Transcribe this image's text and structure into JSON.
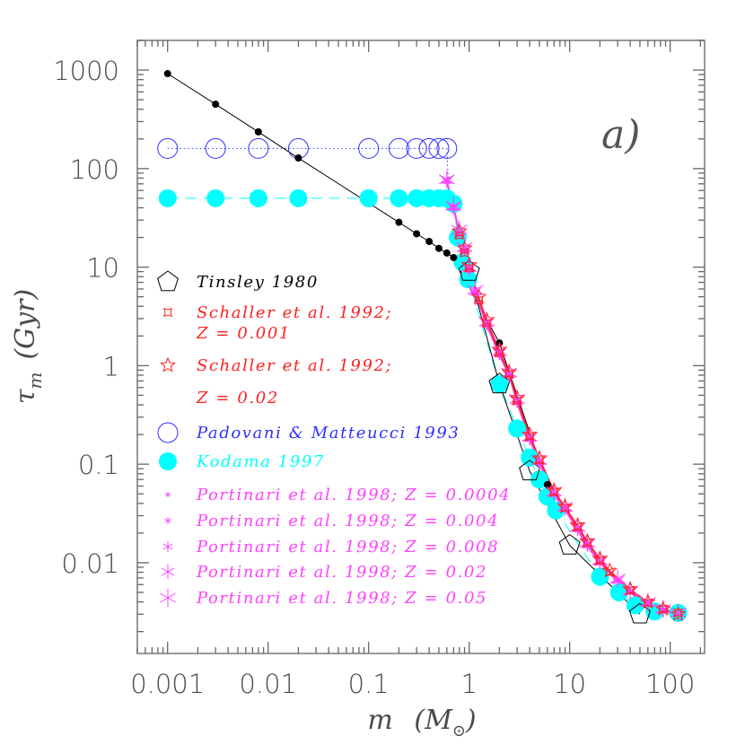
{
  "chart_data": {
    "type": "scatter",
    "panel_label": "a)",
    "xlabel": {
      "symbol": "m",
      "unit_open": "(",
      "unit": "M",
      "unit_sub": "⊙",
      "unit_close": ")"
    },
    "ylabel": {
      "symbol": "τ",
      "sub": "m",
      "unit": "(Gyr)"
    },
    "xscale": "log",
    "yscale": "log",
    "xlim": [
      0.0005,
      220
    ],
    "ylim": [
      0.0012,
      2000
    ],
    "xticks": [
      "0.001",
      "0.01",
      "0.1",
      "1",
      "10",
      "100"
    ],
    "yticks": [
      "0.01",
      "0.1",
      "1",
      "10",
      "100",
      "1000"
    ],
    "grid": false,
    "legend_position": "center-left",
    "series": [
      {
        "marker": "dot",
        "color": "#000000",
        "line": "solid",
        "in_legend": false,
        "points": [
          [
            0.001,
            920
          ],
          [
            0.003,
            450
          ],
          [
            0.008,
            236
          ],
          [
            0.02,
            128
          ],
          [
            0.2,
            28.5
          ],
          [
            0.3,
            21.8
          ],
          [
            0.4,
            18.2
          ],
          [
            0.5,
            15.5
          ],
          [
            0.6,
            13.9
          ],
          [
            0.7,
            12.5
          ],
          [
            2,
            1.7
          ],
          [
            6,
            0.062
          ]
        ]
      },
      {
        "name": "Tinsley 1980",
        "marker": "pentagon",
        "color": "#000000",
        "line": "solid",
        "points": [
          [
            1,
            9
          ],
          [
            2,
            0.65
          ],
          [
            4,
            0.085
          ],
          [
            10,
            0.015
          ],
          [
            50,
            0.003
          ]
        ]
      },
      {
        "name": "Schaller et al. 1992; Z = 0.001",
        "label_lines": [
          "Schaller et al. 1992;",
          "Z = 0.001"
        ],
        "marker": "star4",
        "color": "#ff2020",
        "line": "solid",
        "points": [
          [
            0.8,
            21
          ],
          [
            0.9,
            14
          ],
          [
            1,
            9.8
          ],
          [
            1.25,
            4.6
          ],
          [
            1.5,
            2.7
          ],
          [
            2,
            1.35
          ],
          [
            2.5,
            0.82
          ],
          [
            3,
            0.44
          ],
          [
            4,
            0.19
          ],
          [
            5,
            0.11
          ],
          [
            7,
            0.052
          ],
          [
            9,
            0.036
          ],
          [
            12,
            0.023
          ],
          [
            15,
            0.016
          ],
          [
            20,
            0.0105
          ],
          [
            25,
            0.008
          ],
          [
            40,
            0.0052
          ],
          [
            60,
            0.0039
          ],
          [
            85,
            0.0034
          ],
          [
            120,
            0.0031
          ]
        ]
      },
      {
        "name": "Schaller et al. 1992; Z = 0.02",
        "label_lines": [
          "Schaller et al. 1992;",
          "Z = 0.02"
        ],
        "marker": "star5",
        "color": "#ff2020",
        "line": "solid",
        "points": [
          [
            0.8,
            23
          ],
          [
            0.9,
            15.5
          ],
          [
            1,
            10.5
          ],
          [
            1.25,
            5
          ],
          [
            1.5,
            2.9
          ],
          [
            2,
            1.45
          ],
          [
            2.5,
            0.86
          ],
          [
            3,
            0.47
          ],
          [
            4,
            0.2
          ],
          [
            5,
            0.115
          ],
          [
            7,
            0.054
          ],
          [
            9,
            0.037
          ],
          [
            12,
            0.024
          ],
          [
            15,
            0.0165
          ],
          [
            20,
            0.011
          ],
          [
            25,
            0.0083
          ],
          [
            40,
            0.0054
          ],
          [
            60,
            0.004
          ],
          [
            85,
            0.0034
          ],
          [
            120,
            0.003
          ]
        ]
      },
      {
        "name": "Padovani & Matteucci 1993",
        "marker": "circle-open",
        "color": "#3030ff",
        "line": "dotted",
        "points": [
          [
            0.001,
            160
          ],
          [
            0.003,
            160
          ],
          [
            0.008,
            160
          ],
          [
            0.02,
            160
          ],
          [
            0.1,
            160
          ],
          [
            0.2,
            160
          ],
          [
            0.3,
            160
          ],
          [
            0.4,
            160
          ],
          [
            0.5,
            160
          ],
          [
            0.6,
            160
          ]
        ]
      },
      {
        "name": "Kodama 1997",
        "marker": "circle-filled",
        "color": "#00ffff",
        "line": "dashed",
        "points": [
          [
            0.001,
            50
          ],
          [
            0.003,
            50
          ],
          [
            0.008,
            50
          ],
          [
            0.02,
            50
          ],
          [
            0.1,
            50
          ],
          [
            0.2,
            50
          ],
          [
            0.3,
            50
          ],
          [
            0.4,
            50
          ],
          [
            0.5,
            50
          ],
          [
            0.6,
            50
          ],
          [
            0.7,
            44
          ],
          [
            0.77,
            20
          ],
          [
            0.86,
            11.2
          ],
          [
            0.98,
            7.5
          ],
          [
            2,
            0.65
          ],
          [
            3,
            0.23
          ],
          [
            4,
            0.117
          ],
          [
            5,
            0.07
          ],
          [
            6,
            0.047
          ],
          [
            7.3,
            0.034
          ],
          [
            20,
            0.0072
          ],
          [
            31,
            0.005
          ],
          [
            45,
            0.0037
          ],
          [
            70,
            0.0032
          ],
          [
            120,
            0.0031
          ]
        ]
      },
      {
        "name": "Portinari et al. 1998; Z = 0.0004",
        "marker": "asterisk-1",
        "color": "#ff40ff",
        "line": "solid",
        "points": [
          [
            0.6,
            72
          ],
          [
            0.7,
            38
          ],
          [
            0.8,
            21
          ],
          [
            0.9,
            14
          ],
          [
            1,
            9
          ],
          [
            1.15,
            5.3
          ],
          [
            1.5,
            2.5
          ],
          [
            2,
            1.25
          ],
          [
            2.5,
            0.78
          ],
          [
            3,
            0.41
          ],
          [
            4,
            0.175
          ],
          [
            5,
            0.1
          ],
          [
            7,
            0.048
          ],
          [
            9,
            0.034
          ],
          [
            12,
            0.021
          ],
          [
            15,
            0.0145
          ],
          [
            20,
            0.0098
          ],
          [
            30,
            0.0064
          ],
          [
            40,
            0.0049
          ],
          [
            60,
            0.0037
          ],
          [
            85,
            0.0032
          ],
          [
            120,
            0.003
          ]
        ]
      },
      {
        "name": "Portinari et al. 1998; Z = 0.004",
        "marker": "asterisk-2",
        "color": "#ff40ff",
        "line": "solid",
        "points": [
          [
            0.6,
            74
          ],
          [
            0.7,
            39
          ],
          [
            0.8,
            22
          ],
          [
            0.9,
            14.5
          ],
          [
            1,
            9.3
          ],
          [
            1.15,
            5.4
          ],
          [
            1.5,
            2.55
          ],
          [
            2,
            1.28
          ],
          [
            2.5,
            0.79
          ],
          [
            3,
            0.42
          ],
          [
            4,
            0.178
          ],
          [
            5,
            0.102
          ],
          [
            7,
            0.049
          ],
          [
            9,
            0.035
          ],
          [
            12,
            0.0215
          ],
          [
            15,
            0.0148
          ],
          [
            20,
            0.01
          ],
          [
            30,
            0.0065
          ],
          [
            40,
            0.005
          ],
          [
            60,
            0.0038
          ],
          [
            85,
            0.0033
          ],
          [
            120,
            0.003
          ]
        ]
      },
      {
        "name": "Portinari et al. 1998; Z = 0.008",
        "marker": "asterisk-3",
        "color": "#ff40ff",
        "line": "solid",
        "points": [
          [
            0.6,
            75
          ],
          [
            0.7,
            40
          ],
          [
            0.8,
            22
          ],
          [
            0.9,
            15
          ],
          [
            1,
            9.5
          ],
          [
            1.15,
            5.5
          ],
          [
            1.5,
            2.6
          ],
          [
            2,
            1.3
          ],
          [
            2.5,
            0.8
          ],
          [
            3,
            0.42
          ],
          [
            4,
            0.18
          ],
          [
            5,
            0.105
          ],
          [
            7,
            0.05
          ],
          [
            9,
            0.035
          ],
          [
            12,
            0.022
          ],
          [
            15,
            0.015
          ],
          [
            20,
            0.01
          ],
          [
            30,
            0.0065
          ],
          [
            40,
            0.005
          ],
          [
            60,
            0.0038
          ],
          [
            85,
            0.0033
          ],
          [
            120,
            0.003
          ]
        ]
      },
      {
        "name": "Portinari et al. 1998; Z = 0.02",
        "marker": "asterisk-4",
        "color": "#ff40ff",
        "line": "solid",
        "points": [
          [
            0.6,
            77
          ],
          [
            0.7,
            41
          ],
          [
            0.8,
            23
          ],
          [
            0.9,
            15.5
          ],
          [
            1,
            9.8
          ],
          [
            1.15,
            5.7
          ],
          [
            1.5,
            2.7
          ],
          [
            2,
            1.35
          ],
          [
            2.5,
            0.82
          ],
          [
            3,
            0.44
          ],
          [
            4,
            0.185
          ],
          [
            5,
            0.108
          ],
          [
            7,
            0.051
          ],
          [
            9,
            0.036
          ],
          [
            12,
            0.0225
          ],
          [
            15,
            0.0155
          ],
          [
            20,
            0.0103
          ],
          [
            30,
            0.0067
          ],
          [
            40,
            0.0051
          ],
          [
            60,
            0.0039
          ],
          [
            85,
            0.0033
          ],
          [
            120,
            0.0031
          ]
        ]
      },
      {
        "name": "Portinari et al. 1998; Z = 0.05",
        "marker": "asterisk-5",
        "color": "#ff40ff",
        "line": "solid",
        "points": [
          [
            0.6,
            78
          ],
          [
            0.7,
            42
          ],
          [
            0.8,
            24
          ],
          [
            0.9,
            16
          ],
          [
            1,
            10
          ],
          [
            1.15,
            5.9
          ],
          [
            1.5,
            2.8
          ],
          [
            2,
            1.4
          ],
          [
            2.5,
            0.85
          ],
          [
            3,
            0.46
          ],
          [
            4,
            0.19
          ],
          [
            5,
            0.11
          ],
          [
            7,
            0.053
          ],
          [
            9,
            0.037
          ],
          [
            12,
            0.023
          ],
          [
            15,
            0.016
          ],
          [
            20,
            0.0106
          ],
          [
            30,
            0.0069
          ],
          [
            40,
            0.0052
          ],
          [
            60,
            0.004
          ],
          [
            85,
            0.0034
          ],
          [
            120,
            0.0031
          ]
        ]
      }
    ]
  }
}
